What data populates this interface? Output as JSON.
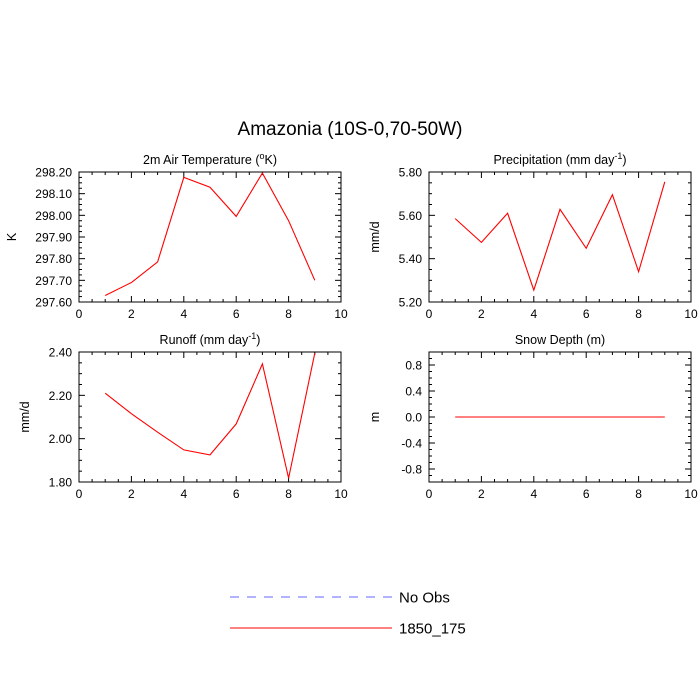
{
  "figure": {
    "title": "Amazonia (10S-0,70-50W)"
  },
  "legend": {
    "entries": [
      {
        "label": "No Obs",
        "color": "#6666ff",
        "style": "dashed"
      },
      {
        "label": "1850_175",
        "color": "#ff0000",
        "style": "solid"
      }
    ]
  },
  "chart_data": [
    {
      "type": "line",
      "title": "2m Air Temperature (oK)",
      "title_main": "2m Air Temperature (",
      "title_sup": "o",
      "title_tail": "K)",
      "xlabel": "",
      "ylabel": "K",
      "xlim": [
        0,
        10
      ],
      "ylim": [
        297.6,
        298.2
      ],
      "xticks": [
        0,
        2,
        4,
        6,
        8,
        10
      ],
      "xticklabels": [
        "0",
        "2",
        "4",
        "6",
        "8",
        "10"
      ],
      "yticks": [
        297.6,
        297.7,
        297.8,
        297.9,
        298.0,
        298.1,
        298.2
      ],
      "yticklabels": [
        "297.60",
        "297.70",
        "297.80",
        "297.90",
        "298.00",
        "298.10",
        "298.20"
      ],
      "series": [
        {
          "name": "1850_175",
          "color": "#ff0000",
          "x": [
            1,
            2,
            3,
            4,
            5,
            6,
            7,
            8,
            9
          ],
          "values": [
            297.63,
            297.69,
            297.785,
            298.175,
            298.13,
            297.995,
            298.195,
            297.975,
            297.7
          ]
        }
      ]
    },
    {
      "type": "line",
      "title": "Precipitation (mm day-1)",
      "title_main": "Precipitation (mm day",
      "title_sup": "-1",
      "title_tail": ")",
      "xlabel": "",
      "ylabel": "mm/d",
      "xlim": [
        0,
        10
      ],
      "ylim": [
        5.2,
        5.8
      ],
      "xticks": [
        0,
        2,
        4,
        6,
        8,
        10
      ],
      "xticklabels": [
        "0",
        "2",
        "4",
        "6",
        "8",
        "10"
      ],
      "yticks": [
        5.2,
        5.4,
        5.6,
        5.8
      ],
      "yticklabels": [
        "5.20",
        "5.40",
        "5.60",
        "5.80"
      ],
      "series": [
        {
          "name": "1850_175",
          "color": "#ff0000",
          "x": [
            1,
            2,
            3,
            4,
            5,
            6,
            7,
            8,
            9
          ],
          "values": [
            5.585,
            5.475,
            5.61,
            5.255,
            5.628,
            5.448,
            5.695,
            5.34,
            5.755
          ]
        }
      ]
    },
    {
      "type": "line",
      "title": "Runoff (mm day-1)",
      "title_main": "Runoff (mm day",
      "title_sup": "-1",
      "title_tail": ")",
      "xlabel": "",
      "ylabel": "mm/d",
      "xlim": [
        0,
        10
      ],
      "ylim": [
        1.8,
        2.4
      ],
      "xticks": [
        0,
        2,
        4,
        6,
        8,
        10
      ],
      "xticklabels": [
        "0",
        "2",
        "4",
        "6",
        "8",
        "10"
      ],
      "yticks": [
        1.8,
        2.0,
        2.2,
        2.4
      ],
      "yticklabels": [
        "1.80",
        "2.00",
        "2.20",
        "2.40"
      ],
      "series": [
        {
          "name": "1850_175",
          "color": "#ff0000",
          "x": [
            1,
            2,
            3,
            4,
            5,
            6,
            7,
            8,
            9
          ],
          "values": [
            2.21,
            2.115,
            2.03,
            1.948,
            1.925,
            2.068,
            2.345,
            1.818,
            2.395
          ]
        }
      ]
    },
    {
      "type": "line",
      "title": "Snow Depth (m)",
      "title_main": "Snow Depth (m)",
      "title_sup": "",
      "title_tail": "",
      "xlabel": "",
      "ylabel": "m",
      "xlim": [
        0,
        10
      ],
      "ylim": [
        -1.0,
        1.0
      ],
      "xticks": [
        0,
        2,
        4,
        6,
        8,
        10
      ],
      "xticklabels": [
        "0",
        "2",
        "4",
        "6",
        "8",
        "10"
      ],
      "yticks": [
        -0.8,
        -0.4,
        0.0,
        0.4,
        0.8
      ],
      "yticklabels": [
        "-0.8",
        "-0.4",
        "0.0",
        "0.4",
        "0.8"
      ],
      "series": [
        {
          "name": "1850_175",
          "color": "#ff0000",
          "x": [
            1,
            2,
            3,
            4,
            5,
            6,
            7,
            8,
            9
          ],
          "values": [
            0,
            0,
            0,
            0,
            0,
            0,
            0,
            0,
            0
          ]
        }
      ]
    }
  ]
}
